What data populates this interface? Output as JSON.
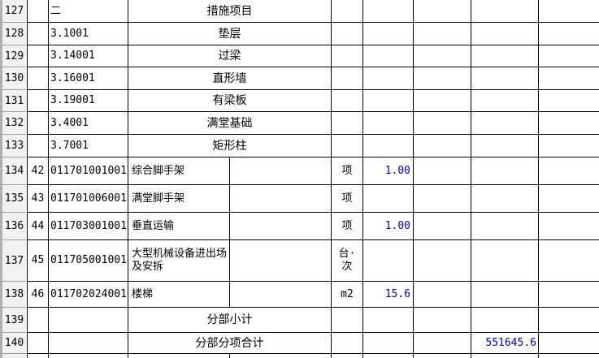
{
  "colors": {
    "quantity_text": "#0000D2",
    "grid_line": "#000000",
    "row_header_bg": "#F2F2F2",
    "row_header_border": "#9E9E9E",
    "left_edge": "#B0B0B0"
  },
  "rows": [
    {
      "id": "127",
      "seq": "",
      "code": "二",
      "title": "措施项目"
    },
    {
      "id": "128",
      "seq": "",
      "code": "3.1001",
      "title": "垫层"
    },
    {
      "id": "129",
      "seq": "",
      "code": "3.14001",
      "title": "过梁"
    },
    {
      "id": "130",
      "seq": "",
      "code": "3.16001",
      "title": "直形墙"
    },
    {
      "id": "131",
      "seq": "",
      "code": "3.19001",
      "title": "有梁板"
    },
    {
      "id": "132",
      "seq": "",
      "code": "3.4001",
      "title": "满堂基础"
    },
    {
      "id": "133",
      "seq": "",
      "code": "3.7001",
      "title": "矩形柱"
    },
    {
      "id": "134",
      "seq": "42",
      "code": "011701001001",
      "name": "综合脚手架",
      "unit": "项",
      "qty": "1.00"
    },
    {
      "id": "135",
      "seq": "43",
      "code": "011701006001",
      "name": "满堂脚手架",
      "unit": "项",
      "qty": ""
    },
    {
      "id": "136",
      "seq": "44",
      "code": "011703001001",
      "name": "垂直运输",
      "unit": "项",
      "qty": "1.00"
    },
    {
      "id": "137",
      "seq": "45",
      "code": "011705001001",
      "name": "大型机械设备进出场及安拆",
      "unit": "台·次",
      "qty": ""
    },
    {
      "id": "138",
      "seq": "46",
      "code": "011702024001",
      "name": "楼梯",
      "unit": "m2",
      "qty": "15.6"
    },
    {
      "id": "139",
      "title": "分部小计",
      "total": ""
    },
    {
      "id": "140",
      "title": "分部分项合计",
      "total": "551645.6"
    }
  ]
}
